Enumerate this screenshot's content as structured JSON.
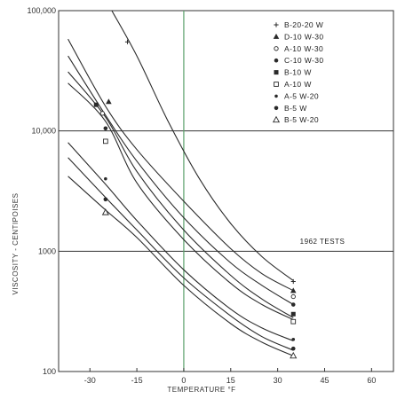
{
  "chart_data": {
    "type": "line",
    "title": "",
    "xlabel": "TEMPERATURE °F",
    "ylabel": "VISCOSITY - CENTIPOISES",
    "xlim": [
      -40,
      67
    ],
    "ylim": [
      100,
      100000
    ],
    "yscale": "log",
    "x_ticks": [
      -30,
      -15,
      0,
      15,
      30,
      45,
      60
    ],
    "x_tick_labels": [
      "-30",
      "-15",
      "0",
      "15",
      "30",
      "45",
      "60"
    ],
    "y_ticks": [
      100,
      1000,
      10000,
      100000
    ],
    "y_tick_labels": [
      "100",
      "1000",
      "10,000",
      "100,000"
    ],
    "grid": "major-only",
    "legend_position": "top-right",
    "annotation": "1962 TESTS",
    "colors": {
      "background": "#ffffff",
      "ink": "#2a2a2a",
      "zero_line": "#5aa06a",
      "grid": "#333333"
    },
    "series": [
      {
        "name": "B-20-20 W",
        "marker": "plus",
        "points": [
          [
            -18,
            55000
          ],
          [
            35,
            560
          ]
        ]
      },
      {
        "name": "D-10 W-30",
        "marker": "triangle-filled",
        "points": [
          [
            -24,
            17500
          ],
          [
            35,
            470
          ]
        ]
      },
      {
        "name": "A-10 W-30",
        "marker": "circle-open",
        "points": [
          [
            -26,
            14000
          ],
          [
            35,
            420
          ]
        ]
      },
      {
        "name": "C-10 W-30",
        "marker": "circle-filled",
        "points": [
          [
            -25,
            10500
          ],
          [
            35,
            360
          ]
        ]
      },
      {
        "name": "B-10 W",
        "marker": "square-filled",
        "points": [
          [
            -28,
            16500
          ],
          [
            35,
            300
          ]
        ]
      },
      {
        "name": "A-10 W",
        "marker": "square-open",
        "points": [
          [
            -25,
            8200
          ],
          [
            35,
            260
          ]
        ]
      },
      {
        "name": "A-5 W-20",
        "marker": "dot",
        "points": [
          [
            -25,
            4000
          ],
          [
            35,
            185
          ]
        ]
      },
      {
        "name": "B-5 W",
        "marker": "circle-filled",
        "points": [
          [
            -25,
            2700
          ],
          [
            35,
            155
          ]
        ]
      },
      {
        "name": "B-5 W-20",
        "marker": "triangle-open",
        "points": [
          [
            -25,
            2100
          ],
          [
            35,
            135
          ]
        ]
      }
    ],
    "curves": [
      [
        [
          -23,
          100000
        ],
        [
          -15,
          42000
        ],
        [
          -5,
          12000
        ],
        [
          5,
          4000
        ],
        [
          15,
          1700
        ],
        [
          25,
          900
        ],
        [
          35,
          570
        ]
      ],
      [
        [
          -37,
          58000
        ],
        [
          -25,
          16000
        ],
        [
          -15,
          7000
        ],
        [
          0,
          2600
        ],
        [
          15,
          1050
        ],
        [
          25,
          650
        ],
        [
          35,
          470
        ]
      ],
      [
        [
          -37,
          42000
        ],
        [
          -25,
          13500
        ],
        [
          -15,
          5600
        ],
        [
          0,
          1900
        ],
        [
          15,
          800
        ],
        [
          25,
          520
        ],
        [
          35,
          360
        ]
      ],
      [
        [
          -37,
          31000
        ],
        [
          -25,
          13000
        ],
        [
          -15,
          4600
        ],
        [
          0,
          1500
        ],
        [
          15,
          630
        ],
        [
          25,
          400
        ],
        [
          35,
          280
        ]
      ],
      [
        [
          -37,
          25000
        ],
        [
          -25,
          12000
        ],
        [
          -15,
          3700
        ],
        [
          0,
          1250
        ],
        [
          15,
          540
        ],
        [
          25,
          360
        ],
        [
          35,
          270
        ]
      ],
      [
        [
          -37,
          8000
        ],
        [
          -25,
          3600
        ],
        [
          -15,
          1800
        ],
        [
          0,
          700
        ],
        [
          15,
          330
        ],
        [
          25,
          230
        ],
        [
          35,
          180
        ]
      ],
      [
        [
          -37,
          6000
        ],
        [
          -25,
          2800
        ],
        [
          -15,
          1500
        ],
        [
          0,
          600
        ],
        [
          15,
          290
        ],
        [
          25,
          195
        ],
        [
          35,
          150
        ]
      ],
      [
        [
          -37,
          4200
        ],
        [
          -25,
          2200
        ],
        [
          -15,
          1300
        ],
        [
          0,
          520
        ],
        [
          15,
          250
        ],
        [
          25,
          175
        ],
        [
          35,
          135
        ]
      ]
    ]
  }
}
